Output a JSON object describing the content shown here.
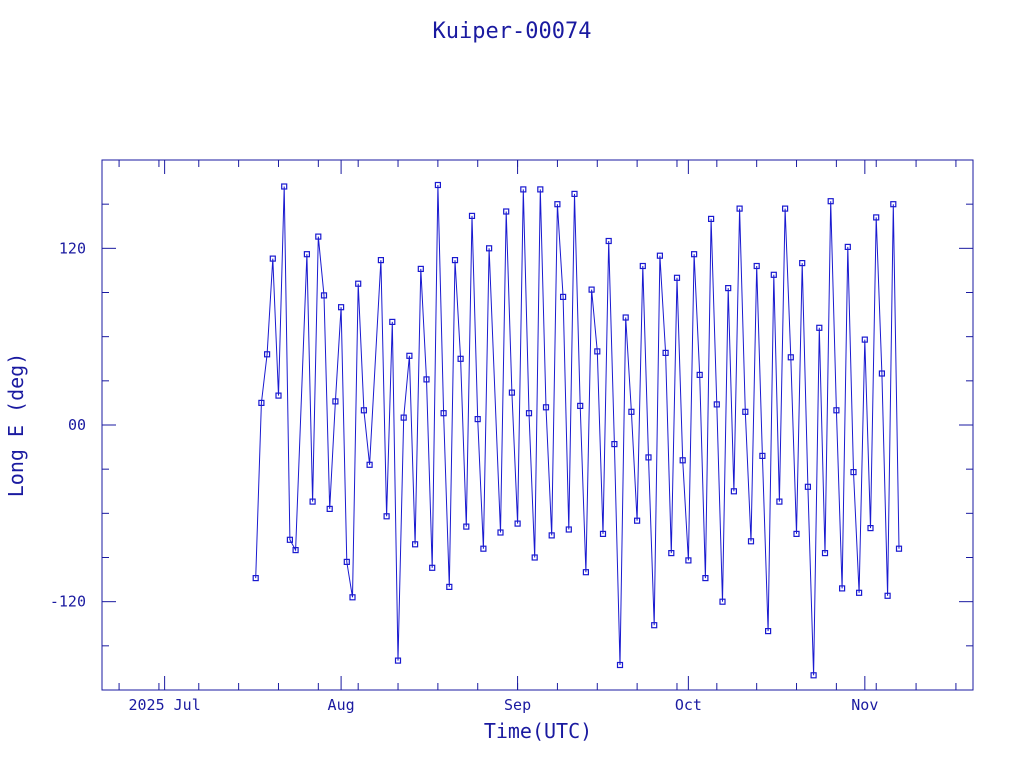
{
  "chart_data": {
    "type": "line",
    "title": "Kuiper-00074",
    "xlabel": "Time(UTC)",
    "ylabel": "Long E (deg)",
    "xlim": [
      "2025-06-20",
      "2025-11-20"
    ],
    "ylim": [
      -180,
      180
    ],
    "x_tick_labels": [
      {
        "date": "2025-07-01",
        "label": "2025 Jul"
      },
      {
        "date": "2025-08-01",
        "label": "Aug"
      },
      {
        "date": "2025-09-01",
        "label": "Sep"
      },
      {
        "date": "2025-10-01",
        "label": "Oct"
      },
      {
        "date": "2025-11-01",
        "label": "Nov"
      }
    ],
    "y_tick_labels": [
      {
        "value": 120,
        "label": "120"
      },
      {
        "value": 0,
        "label": "00"
      },
      {
        "value": -120,
        "label": "-120"
      }
    ],
    "y_minor_ticks": [
      -150,
      -90,
      -60,
      -30,
      30,
      60,
      90,
      150
    ],
    "data_start": "2025-07-17",
    "data_end": "2025-11-07",
    "marker": "square",
    "grid": false,
    "colors": {
      "series": "#1a1ad0",
      "axis": "#1a1aa0",
      "text": "#1a1aa0"
    },
    "series": [
      {
        "points": [
          [
            "2025-07-17",
            -104
          ],
          [
            "2025-07-18",
            15
          ],
          [
            "2025-07-19",
            48
          ],
          [
            "2025-07-20",
            113
          ],
          [
            "2025-07-21",
            20
          ],
          [
            "2025-07-22",
            162
          ],
          [
            "2025-07-23",
            -78
          ],
          [
            "2025-07-24",
            -85
          ],
          [
            "2025-07-26",
            116
          ],
          [
            "2025-07-27",
            -52
          ],
          [
            "2025-07-28",
            128
          ],
          [
            "2025-07-29",
            88
          ],
          [
            "2025-07-30",
            -57
          ],
          [
            "2025-07-31",
            16
          ],
          [
            "2025-08-01",
            80
          ],
          [
            "2025-08-02",
            -93
          ],
          [
            "2025-08-03",
            -117
          ],
          [
            "2025-08-04",
            96
          ],
          [
            "2025-08-05",
            10
          ],
          [
            "2025-08-06",
            -27
          ],
          [
            "2025-08-08",
            112
          ],
          [
            "2025-08-09",
            -62
          ],
          [
            "2025-08-10",
            70
          ],
          [
            "2025-08-11",
            -160
          ],
          [
            "2025-08-12",
            5
          ],
          [
            "2025-08-13",
            47
          ],
          [
            "2025-08-14",
            -81
          ],
          [
            "2025-08-15",
            106
          ],
          [
            "2025-08-16",
            31
          ],
          [
            "2025-08-17",
            -97
          ],
          [
            "2025-08-18",
            163
          ],
          [
            "2025-08-19",
            8
          ],
          [
            "2025-08-20",
            -110
          ],
          [
            "2025-08-21",
            112
          ],
          [
            "2025-08-22",
            45
          ],
          [
            "2025-08-23",
            -69
          ],
          [
            "2025-08-24",
            142
          ],
          [
            "2025-08-25",
            4
          ],
          [
            "2025-08-26",
            -84
          ],
          [
            "2025-08-27",
            120
          ],
          [
            "2025-08-29",
            -73
          ],
          [
            "2025-08-30",
            145
          ],
          [
            "2025-08-31",
            22
          ],
          [
            "2025-09-01",
            -67
          ],
          [
            "2025-09-02",
            160
          ],
          [
            "2025-09-03",
            8
          ],
          [
            "2025-09-04",
            -90
          ],
          [
            "2025-09-05",
            160
          ],
          [
            "2025-09-06",
            12
          ],
          [
            "2025-09-07",
            -75
          ],
          [
            "2025-09-08",
            150
          ],
          [
            "2025-09-09",
            87
          ],
          [
            "2025-09-10",
            -71
          ],
          [
            "2025-09-11",
            157
          ],
          [
            "2025-09-12",
            13
          ],
          [
            "2025-09-13",
            -100
          ],
          [
            "2025-09-14",
            92
          ],
          [
            "2025-09-15",
            50
          ],
          [
            "2025-09-16",
            -74
          ],
          [
            "2025-09-17",
            125
          ],
          [
            "2025-09-18",
            -13
          ],
          [
            "2025-09-19",
            -163
          ],
          [
            "2025-09-20",
            73
          ],
          [
            "2025-09-21",
            9
          ],
          [
            "2025-09-22",
            -65
          ],
          [
            "2025-09-23",
            108
          ],
          [
            "2025-09-24",
            -22
          ],
          [
            "2025-09-25",
            -136
          ],
          [
            "2025-09-26",
            115
          ],
          [
            "2025-09-27",
            49
          ],
          [
            "2025-09-28",
            -87
          ],
          [
            "2025-09-29",
            100
          ],
          [
            "2025-09-30",
            -24
          ],
          [
            "2025-10-01",
            -92
          ],
          [
            "2025-10-02",
            116
          ],
          [
            "2025-10-03",
            34
          ],
          [
            "2025-10-04",
            -104
          ],
          [
            "2025-10-05",
            140
          ],
          [
            "2025-10-06",
            14
          ],
          [
            "2025-10-07",
            -120
          ],
          [
            "2025-10-08",
            93
          ],
          [
            "2025-10-09",
            -45
          ],
          [
            "2025-10-10",
            147
          ],
          [
            "2025-10-11",
            9
          ],
          [
            "2025-10-12",
            -79
          ],
          [
            "2025-10-13",
            108
          ],
          [
            "2025-10-14",
            -21
          ],
          [
            "2025-10-15",
            -140
          ],
          [
            "2025-10-16",
            102
          ],
          [
            "2025-10-17",
            -52
          ],
          [
            "2025-10-18",
            147
          ],
          [
            "2025-10-19",
            46
          ],
          [
            "2025-10-20",
            -74
          ],
          [
            "2025-10-21",
            110
          ],
          [
            "2025-10-22",
            -42
          ],
          [
            "2025-10-23",
            -170
          ],
          [
            "2025-10-24",
            66
          ],
          [
            "2025-10-25",
            -87
          ],
          [
            "2025-10-26",
            152
          ],
          [
            "2025-10-27",
            10
          ],
          [
            "2025-10-28",
            -111
          ],
          [
            "2025-10-29",
            121
          ],
          [
            "2025-10-30",
            -32
          ],
          [
            "2025-10-31",
            -114
          ],
          [
            "2025-11-01",
            58
          ],
          [
            "2025-11-02",
            -70
          ],
          [
            "2025-11-03",
            141
          ],
          [
            "2025-11-04",
            35
          ],
          [
            "2025-11-05",
            -116
          ],
          [
            "2025-11-06",
            150
          ],
          [
            "2025-11-07",
            -84
          ]
        ]
      }
    ]
  }
}
